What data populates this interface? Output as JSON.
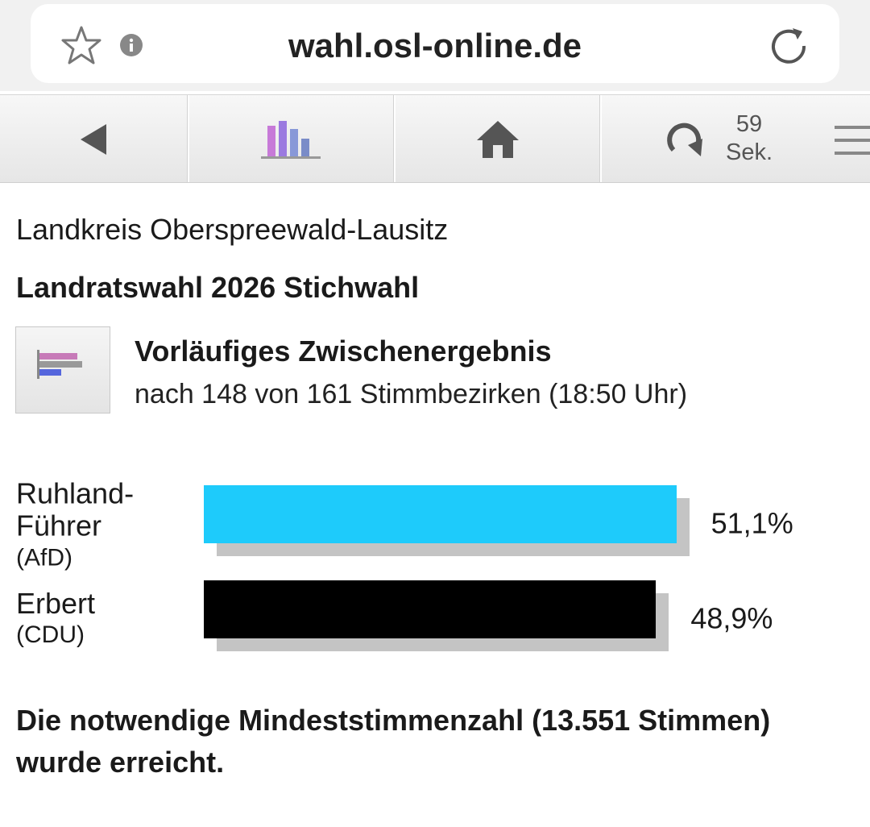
{
  "browser": {
    "url": "wahl.osl-online.de"
  },
  "toolbar": {
    "countdown_value": "59",
    "countdown_unit": "Sek."
  },
  "header": {
    "region": "Landkreis Oberspreewald-Lausitz",
    "title": "Landratswahl 2026 Stichwahl",
    "status": "Vorläufiges Zwischenergebnis",
    "progress": "nach 148 von 161 Stimmbezirken (18:50 Uhr)"
  },
  "chart_data": {
    "type": "bar",
    "orientation": "horizontal",
    "categories": [
      "Ruhland-Führer",
      "Erbert"
    ],
    "subcategories": [
      "(AfD)",
      "(CDU)"
    ],
    "values": [
      51.1,
      48.9
    ],
    "value_labels": [
      "51,1%",
      "48,9%"
    ],
    "colors": [
      "#1ecbfb",
      "#000000"
    ],
    "shadow_color": "#c4c4c4"
  },
  "footer": {
    "note": "Die notwendige Mindeststimmenzahl (13.551 Stimmen) wurde erreicht."
  }
}
